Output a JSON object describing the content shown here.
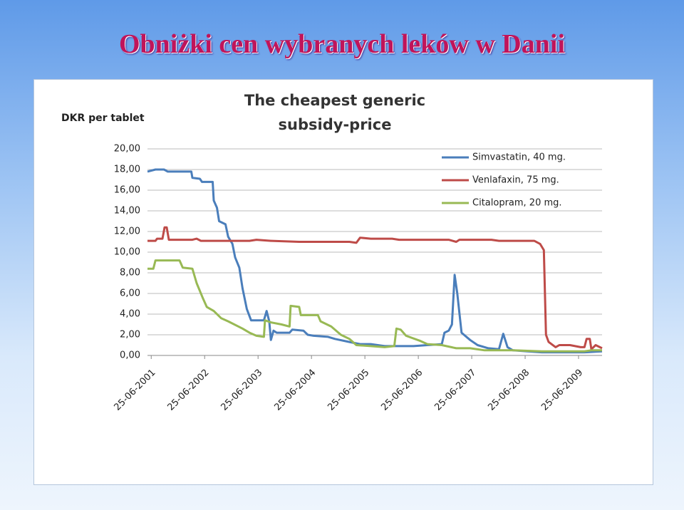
{
  "slide_title": "Obniżki cen wybranych leków w Danii",
  "chart_data": {
    "type": "line",
    "title": "The cheapest generic subsidy-price",
    "y_label": "DKR per tablet",
    "xlim": [
      2001.41,
      2009.92
    ],
    "ylim": [
      0,
      20
    ],
    "xticks": [
      {
        "value": 2001.48,
        "label": "25-06-2001"
      },
      {
        "value": 2002.48,
        "label": "25-06-2002"
      },
      {
        "value": 2003.48,
        "label": "25-06-2003"
      },
      {
        "value": 2004.48,
        "label": "25-06-2004"
      },
      {
        "value": 2005.48,
        "label": "25-06-2005"
      },
      {
        "value": 2006.48,
        "label": "25-06-2006"
      },
      {
        "value": 2007.48,
        "label": "25-06-2007"
      },
      {
        "value": 2008.48,
        "label": "25-06-2008"
      },
      {
        "value": 2009.48,
        "label": "25-06-2009"
      }
    ],
    "yticks": [
      {
        "value": 0,
        "label": "0,00"
      },
      {
        "value": 2,
        "label": "2,00"
      },
      {
        "value": 4,
        "label": "4,00"
      },
      {
        "value": 6,
        "label": "6,00"
      },
      {
        "value": 8,
        "label": "8,00"
      },
      {
        "value": 10,
        "label": "10,00"
      },
      {
        "value": 12,
        "label": "12,00"
      },
      {
        "value": 14,
        "label": "14,00"
      },
      {
        "value": 16,
        "label": "16,00"
      },
      {
        "value": 18,
        "label": "18,00"
      },
      {
        "value": 20,
        "label": "20,00"
      }
    ],
    "grid": true,
    "legend": "upper right",
    "series": [
      {
        "name": "Simvastatin, 40 mg.",
        "color": "#4a7ebb",
        "x": [
          2001.41,
          2001.56,
          2001.72,
          2001.79,
          2002.23,
          2002.25,
          2002.39,
          2002.43,
          2002.63,
          2002.65,
          2002.71,
          2002.75,
          2002.87,
          2002.92,
          2003.0,
          2003.05,
          2003.13,
          2003.19,
          2003.27,
          2003.35,
          2003.59,
          2003.64,
          2003.69,
          2003.72,
          2003.77,
          2003.83,
          2004.07,
          2004.12,
          2004.33,
          2004.41,
          2004.52,
          2004.79,
          2004.92,
          2005.19,
          2005.39,
          2005.59,
          2005.85,
          2006.12,
          2006.39,
          2006.65,
          2006.92,
          2006.97,
          2007.05,
          2007.11,
          2007.16,
          2007.21,
          2007.29,
          2007.45,
          2007.59,
          2007.79,
          2007.99,
          2008.07,
          2008.15,
          2008.25,
          2008.52,
          2008.79,
          2009.19,
          2009.59,
          2009.92
        ],
        "values": [
          17.8,
          18.0,
          18.0,
          17.8,
          17.8,
          17.2,
          17.1,
          16.8,
          16.8,
          15.0,
          14.3,
          13.0,
          12.7,
          11.5,
          10.8,
          9.5,
          8.5,
          6.5,
          4.5,
          3.4,
          3.4,
          4.3,
          3.3,
          1.5,
          2.4,
          2.2,
          2.2,
          2.5,
          2.4,
          2.0,
          1.9,
          1.8,
          1.6,
          1.3,
          1.1,
          1.1,
          0.9,
          0.9,
          0.9,
          1.0,
          1.1,
          2.2,
          2.4,
          3.0,
          7.8,
          6.0,
          2.2,
          1.5,
          1.0,
          0.7,
          0.6,
          2.1,
          0.8,
          0.5,
          0.4,
          0.3,
          0.3,
          0.3,
          0.4
        ]
      },
      {
        "name": "Venlafaxin, 75 mg.",
        "color": "#be4b48",
        "x": [
          2001.41,
          2001.56,
          2001.59,
          2001.69,
          2001.73,
          2001.77,
          2001.81,
          2002.25,
          2002.33,
          2002.41,
          2003.32,
          2003.45,
          2003.72,
          2004.25,
          2004.79,
          2005.19,
          2005.32,
          2005.39,
          2005.59,
          2005.99,
          2006.12,
          2006.65,
          2007.05,
          2007.19,
          2007.25,
          2007.85,
          2007.99,
          2008.65,
          2008.76,
          2008.83,
          2008.87,
          2008.92,
          2009.05,
          2009.12,
          2009.32,
          2009.52,
          2009.59,
          2009.63,
          2009.69,
          2009.72,
          2009.8,
          2009.92
        ],
        "values": [
          11.1,
          11.1,
          11.3,
          11.3,
          12.4,
          12.4,
          11.2,
          11.2,
          11.3,
          11.1,
          11.1,
          11.2,
          11.1,
          11.0,
          11.0,
          11.0,
          10.9,
          11.4,
          11.3,
          11.3,
          11.2,
          11.2,
          11.2,
          11.0,
          11.2,
          11.2,
          11.1,
          11.1,
          10.8,
          10.2,
          2.0,
          1.3,
          0.8,
          1.0,
          1.0,
          0.8,
          0.8,
          1.6,
          1.6,
          0.6,
          1.0,
          0.7
        ]
      },
      {
        "name": "Citalopram, 20 mg.",
        "color": "#98b954",
        "x": [
          2001.41,
          2001.52,
          2001.56,
          2002.01,
          2002.07,
          2002.25,
          2002.33,
          2002.45,
          2002.52,
          2002.65,
          2002.79,
          2002.92,
          2003.19,
          2003.32,
          2003.45,
          2003.59,
          2003.61,
          2003.72,
          2003.92,
          2004.07,
          2004.09,
          2004.25,
          2004.28,
          2004.6,
          2004.65,
          2004.85,
          2005.03,
          2005.19,
          2005.32,
          2005.59,
          2005.85,
          2006.03,
          2006.07,
          2006.15,
          2006.25,
          2006.52,
          2006.65,
          2006.92,
          2007.19,
          2007.45,
          2007.72,
          2007.99,
          2008.25,
          2008.79,
          2009.32,
          2009.59,
          2009.72,
          2009.92
        ],
        "values": [
          8.4,
          8.4,
          9.2,
          9.2,
          8.5,
          8.4,
          7.0,
          5.5,
          4.7,
          4.3,
          3.6,
          3.3,
          2.6,
          2.2,
          1.9,
          1.8,
          3.4,
          3.2,
          3.0,
          2.8,
          4.8,
          4.7,
          3.9,
          3.9,
          3.3,
          2.8,
          2.0,
          1.6,
          1.0,
          0.9,
          0.8,
          0.9,
          2.6,
          2.5,
          1.9,
          1.4,
          1.1,
          1.0,
          0.7,
          0.7,
          0.5,
          0.5,
          0.5,
          0.4,
          0.4,
          0.4,
          0.5,
          0.5
        ]
      }
    ]
  }
}
